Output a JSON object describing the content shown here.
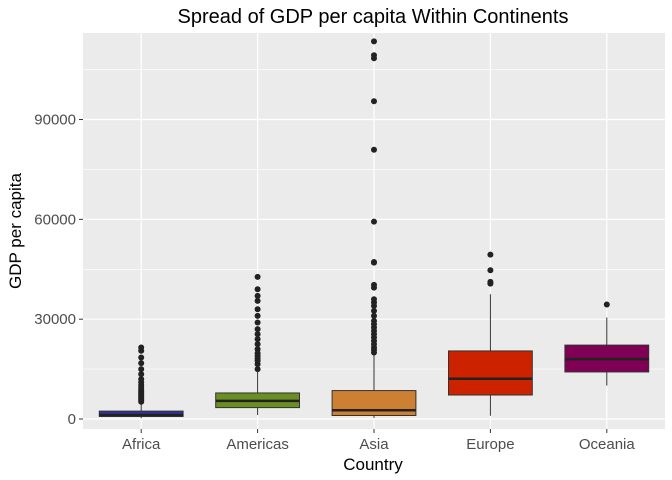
{
  "chart_data": {
    "type": "boxplot",
    "title": "Spread of GDP per capita Within Continents",
    "xlabel": "Country",
    "ylabel": "GDP per capita",
    "ylim": [
      -3000,
      116000
    ],
    "yticks": [
      0,
      30000,
      60000,
      90000
    ],
    "ytick_labels": [
      "0",
      "30000",
      "60000",
      "90000"
    ],
    "grid": true,
    "legend": "none",
    "categories": [
      "Africa",
      "Americas",
      "Asia",
      "Europe",
      "Oceania"
    ],
    "series": [
      {
        "category": "Africa",
        "color": "#333399",
        "whisker_low": 241,
        "q1": 761,
        "median": 1192,
        "q3": 2377,
        "whisker_high": 4800,
        "outliers": [
          5200,
          5600,
          6000,
          6400,
          6800,
          7200,
          7600,
          8000,
          8400,
          8900,
          9500,
          10200,
          11000,
          12000,
          13500,
          15000,
          16800,
          18500,
          20500,
          21500
        ]
      },
      {
        "category": "Americas",
        "color": "#6b8e23",
        "whisker_low": 1202,
        "q1": 3428,
        "median": 5466,
        "q3": 7830,
        "whisker_high": 14200,
        "outliers": [
          15000,
          16500,
          17500,
          18200,
          19000,
          19800,
          21000,
          22500,
          24000,
          25500,
          27000,
          29000,
          31000,
          33000,
          35500,
          37000,
          39000,
          42700
        ]
      },
      {
        "category": "Asia",
        "color": "#cd7f32",
        "whisker_low": 331,
        "q1": 1057,
        "median": 2647,
        "q3": 8549,
        "whisker_high": 19400,
        "outliers": [
          20000,
          20800,
          21500,
          22500,
          23500,
          24500,
          25500,
          26500,
          27500,
          28500,
          29500,
          31000,
          32500,
          34000,
          35000,
          36000,
          39500,
          40300,
          47000,
          47200,
          59300,
          80900,
          95500,
          108400,
          109300,
          113500
        ]
      },
      {
        "category": "Europe",
        "color": "#cc2200",
        "whisker_low": 974,
        "q1": 7213,
        "median": 12082,
        "q3": 20461,
        "whisker_high": 37500,
        "outliers": [
          40700,
          41200,
          44700,
          49400
        ]
      },
      {
        "category": "Oceania",
        "color": "#800055",
        "whisker_low": 10040,
        "q1": 14142,
        "median": 17983,
        "q3": 22214,
        "whisker_high": 30500,
        "outliers": [
          34400
        ]
      }
    ]
  }
}
